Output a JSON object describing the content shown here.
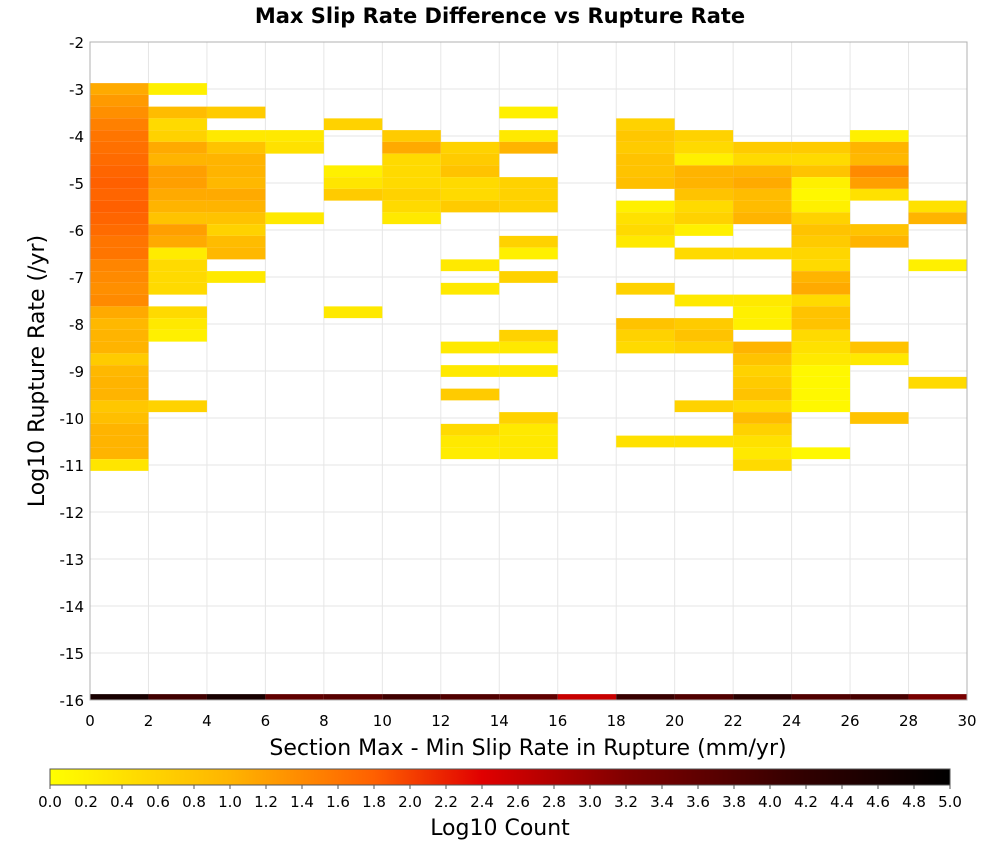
{
  "chart_data": {
    "type": "heatmap",
    "title": "Max Slip Rate Difference vs Rupture Rate",
    "xlabel": "Section Max - Min Slip Rate in Rupture (mm/yr)",
    "ylabel": "Log10 Rupture Rate (/yr)",
    "xlim": [
      0,
      30
    ],
    "ylim": [
      -16,
      -2
    ],
    "x_ticks": [
      "0",
      "2",
      "4",
      "6",
      "8",
      "10",
      "12",
      "14",
      "16",
      "18",
      "20",
      "22",
      "24",
      "26",
      "28",
      "30"
    ],
    "y_ticks": [
      "-2",
      "-3",
      "-4",
      "-5",
      "-6",
      "-7",
      "-8",
      "-9",
      "-10",
      "-11",
      "-12",
      "-13",
      "-14",
      "-15",
      "-16"
    ],
    "grid": true,
    "x_bin_width": 2,
    "y_bin_height": 0.25,
    "colorbar": {
      "label": "Log10 Count",
      "range": [
        0,
        5
      ],
      "ticks": [
        "0.0",
        "0.2",
        "0.4",
        "0.6",
        "0.8",
        "1.0",
        "1.2",
        "1.4",
        "1.6",
        "1.8",
        "2.0",
        "2.2",
        "2.4",
        "2.6",
        "2.8",
        "3.0",
        "3.2",
        "3.4",
        "3.6",
        "3.8",
        "4.0",
        "4.2",
        "4.4",
        "4.6",
        "4.8",
        "5.0"
      ],
      "stops": [
        {
          "v": 0.0,
          "color": "#ffff00"
        },
        {
          "v": 1.0,
          "color": "#ffb400"
        },
        {
          "v": 1.8,
          "color": "#ff6000"
        },
        {
          "v": 2.4,
          "color": "#e00000"
        },
        {
          "v": 3.2,
          "color": "#800000"
        },
        {
          "v": 4.2,
          "color": "#300000"
        },
        {
          "v": 5.0,
          "color": "#000000"
        }
      ]
    },
    "cells": [
      [
        0,
        -3.0,
        1.1
      ],
      [
        0,
        -3.25,
        1.25
      ],
      [
        0,
        -3.5,
        1.35
      ],
      [
        0,
        -3.75,
        1.5
      ],
      [
        0,
        -4.0,
        1.6
      ],
      [
        0,
        -4.25,
        1.65
      ],
      [
        0,
        -4.5,
        1.7
      ],
      [
        0,
        -4.75,
        1.75
      ],
      [
        0,
        -5.0,
        1.8
      ],
      [
        0,
        -5.25,
        1.75
      ],
      [
        0,
        -5.5,
        1.8
      ],
      [
        0,
        -5.75,
        1.75
      ],
      [
        0,
        -6.0,
        1.7
      ],
      [
        0,
        -6.25,
        1.6
      ],
      [
        0,
        -6.5,
        1.6
      ],
      [
        0,
        -6.75,
        1.45
      ],
      [
        0,
        -7.0,
        1.4
      ],
      [
        0,
        -7.25,
        1.35
      ],
      [
        0,
        -7.5,
        1.4
      ],
      [
        0,
        -7.75,
        1.1
      ],
      [
        0,
        -8.0,
        0.95
      ],
      [
        0,
        -8.25,
        1.0
      ],
      [
        0,
        -8.5,
        1.0
      ],
      [
        0,
        -8.75,
        0.7
      ],
      [
        0,
        -9.0,
        0.95
      ],
      [
        0,
        -9.25,
        1.0
      ],
      [
        0,
        -9.5,
        1.0
      ],
      [
        0,
        -9.75,
        0.75
      ],
      [
        0,
        -10.0,
        0.85
      ],
      [
        0,
        -10.25,
        1.0
      ],
      [
        0,
        -10.5,
        1.0
      ],
      [
        0,
        -10.75,
        1.0
      ],
      [
        0,
        -11.0,
        0.35
      ],
      [
        2,
        -3.0,
        0.2
      ],
      [
        2,
        -3.5,
        0.9
      ],
      [
        2,
        -3.75,
        0.5
      ],
      [
        2,
        -4.0,
        0.6
      ],
      [
        2,
        -4.25,
        1.1
      ],
      [
        2,
        -4.5,
        1.0
      ],
      [
        2,
        -4.75,
        1.2
      ],
      [
        2,
        -5.0,
        1.2
      ],
      [
        2,
        -5.25,
        1.1
      ],
      [
        2,
        -5.5,
        1.0
      ],
      [
        2,
        -5.75,
        0.8
      ],
      [
        2,
        -6.0,
        1.2
      ],
      [
        2,
        -6.25,
        1.1
      ],
      [
        2,
        -6.5,
        0.25
      ],
      [
        2,
        -6.75,
        0.5
      ],
      [
        2,
        -7.0,
        0.5
      ],
      [
        2,
        -7.25,
        0.5
      ],
      [
        2,
        -7.75,
        0.5
      ],
      [
        2,
        -8.0,
        0.3
      ],
      [
        2,
        -8.25,
        0.2
      ],
      [
        2,
        -9.75,
        0.6
      ],
      [
        4,
        -3.5,
        0.7
      ],
      [
        4,
        -4.0,
        0.3
      ],
      [
        4,
        -4.25,
        0.8
      ],
      [
        4,
        -4.5,
        1.0
      ],
      [
        4,
        -4.75,
        1.0
      ],
      [
        4,
        -5.0,
        0.95
      ],
      [
        4,
        -5.25,
        1.1
      ],
      [
        4,
        -5.5,
        1.0
      ],
      [
        4,
        -5.75,
        0.8
      ],
      [
        4,
        -6.0,
        0.6
      ],
      [
        4,
        -6.25,
        0.9
      ],
      [
        4,
        -6.5,
        0.95
      ],
      [
        4,
        -7.0,
        0.3
      ],
      [
        6,
        -4.0,
        0.3
      ],
      [
        6,
        -4.25,
        0.4
      ],
      [
        6,
        -5.75,
        0.3
      ],
      [
        8,
        -3.75,
        0.6
      ],
      [
        8,
        -4.75,
        0.2
      ],
      [
        8,
        -5.0,
        0.35
      ],
      [
        8,
        -5.25,
        0.7
      ],
      [
        8,
        -7.75,
        0.3
      ],
      [
        10,
        -4.0,
        0.7
      ],
      [
        10,
        -4.25,
        1.1
      ],
      [
        10,
        -4.5,
        0.5
      ],
      [
        10,
        -4.75,
        0.5
      ],
      [
        10,
        -5.0,
        0.5
      ],
      [
        10,
        -5.25,
        0.6
      ],
      [
        10,
        -5.5,
        0.5
      ],
      [
        10,
        -5.75,
        0.3
      ],
      [
        12,
        -4.25,
        0.6
      ],
      [
        12,
        -4.5,
        0.7
      ],
      [
        12,
        -4.75,
        0.8
      ],
      [
        12,
        -5.0,
        0.5
      ],
      [
        12,
        -5.25,
        0.5
      ],
      [
        12,
        -5.5,
        0.7
      ],
      [
        12,
        -6.75,
        0.3
      ],
      [
        12,
        -7.25,
        0.3
      ],
      [
        12,
        -8.5,
        0.3
      ],
      [
        12,
        -9.0,
        0.3
      ],
      [
        12,
        -9.5,
        0.7
      ],
      [
        12,
        -10.25,
        0.5
      ],
      [
        12,
        -10.5,
        0.3
      ],
      [
        12,
        -10.75,
        0.25
      ],
      [
        14,
        -3.5,
        0.2
      ],
      [
        14,
        -4.0,
        0.3
      ],
      [
        14,
        -4.25,
        1.0
      ],
      [
        14,
        -5.0,
        0.6
      ],
      [
        14,
        -5.25,
        0.6
      ],
      [
        14,
        -5.5,
        0.6
      ],
      [
        14,
        -6.25,
        0.6
      ],
      [
        14,
        -6.5,
        0.2
      ],
      [
        14,
        -7.0,
        0.6
      ],
      [
        14,
        -8.25,
        0.6
      ],
      [
        14,
        -8.5,
        0.3
      ],
      [
        14,
        -9.0,
        0.3
      ],
      [
        14,
        -10.0,
        0.6
      ],
      [
        14,
        -10.25,
        0.3
      ],
      [
        14,
        -10.5,
        0.3
      ],
      [
        14,
        -10.75,
        0.3
      ],
      [
        18,
        -3.75,
        0.6
      ],
      [
        18,
        -4.0,
        0.75
      ],
      [
        18,
        -4.25,
        0.7
      ],
      [
        18,
        -4.5,
        0.8
      ],
      [
        18,
        -4.75,
        0.8
      ],
      [
        18,
        -5.0,
        0.85
      ],
      [
        18,
        -5.5,
        0.2
      ],
      [
        18,
        -5.75,
        0.4
      ],
      [
        18,
        -6.0,
        0.5
      ],
      [
        18,
        -6.25,
        0.3
      ],
      [
        18,
        -7.25,
        0.6
      ],
      [
        18,
        -8.0,
        0.8
      ],
      [
        18,
        -8.25,
        0.6
      ],
      [
        18,
        -8.5,
        0.5
      ],
      [
        18,
        -10.5,
        0.4
      ],
      [
        20,
        -4.0,
        0.6
      ],
      [
        20,
        -4.25,
        0.5
      ],
      [
        20,
        -4.5,
        0.2
      ],
      [
        20,
        -4.75,
        1.0
      ],
      [
        20,
        -5.0,
        1.0
      ],
      [
        20,
        -5.25,
        0.8
      ],
      [
        20,
        -5.5,
        0.5
      ],
      [
        20,
        -5.75,
        0.6
      ],
      [
        20,
        -6.0,
        0.2
      ],
      [
        20,
        -6.5,
        0.5
      ],
      [
        20,
        -7.5,
        0.3
      ],
      [
        20,
        -8.0,
        0.7
      ],
      [
        20,
        -8.25,
        0.8
      ],
      [
        20,
        -8.5,
        0.6
      ],
      [
        20,
        -9.75,
        0.6
      ],
      [
        20,
        -10.5,
        0.4
      ],
      [
        22,
        -4.25,
        0.7
      ],
      [
        22,
        -4.5,
        0.5
      ],
      [
        22,
        -4.75,
        1.0
      ],
      [
        22,
        -5.0,
        1.1
      ],
      [
        22,
        -5.25,
        0.9
      ],
      [
        22,
        -5.5,
        0.9
      ],
      [
        22,
        -5.75,
        1.0
      ],
      [
        22,
        -6.5,
        0.5
      ],
      [
        22,
        -7.5,
        0.3
      ],
      [
        22,
        -7.75,
        0.2
      ],
      [
        22,
        -8.0,
        0.2
      ],
      [
        22,
        -8.5,
        1.0
      ],
      [
        22,
        -8.75,
        0.8
      ],
      [
        22,
        -9.0,
        0.6
      ],
      [
        22,
        -9.25,
        0.7
      ],
      [
        22,
        -9.5,
        0.8
      ],
      [
        22,
        -9.75,
        0.5
      ],
      [
        22,
        -10.0,
        0.9
      ],
      [
        22,
        -10.25,
        0.6
      ],
      [
        22,
        -10.5,
        0.4
      ],
      [
        22,
        -10.75,
        0.3
      ],
      [
        22,
        -11.0,
        0.5
      ],
      [
        24,
        -4.25,
        0.7
      ],
      [
        24,
        -4.5,
        0.5
      ],
      [
        24,
        -4.75,
        0.8
      ],
      [
        24,
        -5.0,
        0.2
      ],
      [
        24,
        -5.25,
        0.1
      ],
      [
        24,
        -5.5,
        0.2
      ],
      [
        24,
        -5.75,
        0.6
      ],
      [
        24,
        -6.0,
        0.8
      ],
      [
        24,
        -6.25,
        0.7
      ],
      [
        24,
        -6.5,
        0.55
      ],
      [
        24,
        -6.75,
        0.5
      ],
      [
        24,
        -7.0,
        1.0
      ],
      [
        24,
        -7.25,
        1.1
      ],
      [
        24,
        -7.5,
        0.5
      ],
      [
        24,
        -7.75,
        0.8
      ],
      [
        24,
        -8.0,
        0.8
      ],
      [
        24,
        -8.25,
        0.5
      ],
      [
        24,
        -8.5,
        0.4
      ],
      [
        24,
        -8.75,
        0.3
      ],
      [
        24,
        -9.0,
        0.1
      ],
      [
        24,
        -9.25,
        0.1
      ],
      [
        24,
        -9.5,
        0.1
      ],
      [
        24,
        -9.75,
        0.1
      ],
      [
        24,
        -10.75,
        0.1
      ],
      [
        26,
        -4.0,
        0.2
      ],
      [
        26,
        -4.25,
        1.0
      ],
      [
        26,
        -4.5,
        0.95
      ],
      [
        26,
        -4.75,
        1.4
      ],
      [
        26,
        -5.0,
        1.2
      ],
      [
        26,
        -5.25,
        0.4
      ],
      [
        26,
        -6.0,
        0.8
      ],
      [
        26,
        -6.25,
        1.0
      ],
      [
        26,
        -8.5,
        0.8
      ],
      [
        26,
        -8.75,
        0.3
      ],
      [
        26,
        -10.0,
        0.8
      ],
      [
        28,
        -5.5,
        0.4
      ],
      [
        28,
        -5.75,
        1.0
      ],
      [
        28,
        -6.75,
        0.2
      ],
      [
        28,
        -9.25,
        0.5
      ]
    ],
    "bottom_row": {
      "y": -16,
      "values": [
        4.6,
        4.0,
        4.6,
        3.6,
        3.7,
        4.0,
        3.8,
        3.6,
        2.6,
        4.1,
        3.8,
        4.3,
        3.8,
        3.9,
        3.3
      ]
    }
  }
}
